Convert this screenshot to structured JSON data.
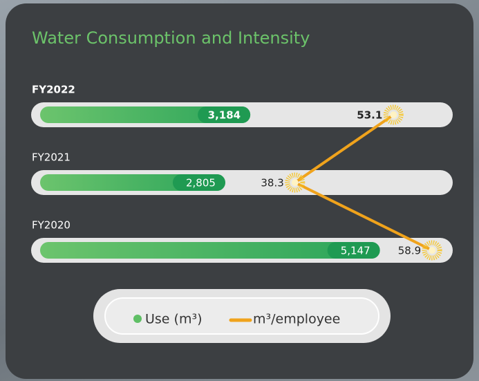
{
  "chart_data": {
    "type": "bar_line",
    "title": "Water Consumption and Intensity",
    "categories": [
      "FY2022",
      "FY2021",
      "FY2020"
    ],
    "series": [
      {
        "name": "Use (m³)",
        "color": "#1f9a52",
        "values": [
          3184,
          2805,
          5147
        ],
        "value_labels": [
          "3,184",
          "2,805",
          "5,147"
        ]
      },
      {
        "name": "m³/employee",
        "color": "#f0a31c",
        "values": [
          53.1,
          38.3,
          58.9
        ],
        "axis": "x2"
      }
    ],
    "xlim": [
      0,
      6250
    ],
    "x2lim": [
      0,
      62
    ]
  }
}
